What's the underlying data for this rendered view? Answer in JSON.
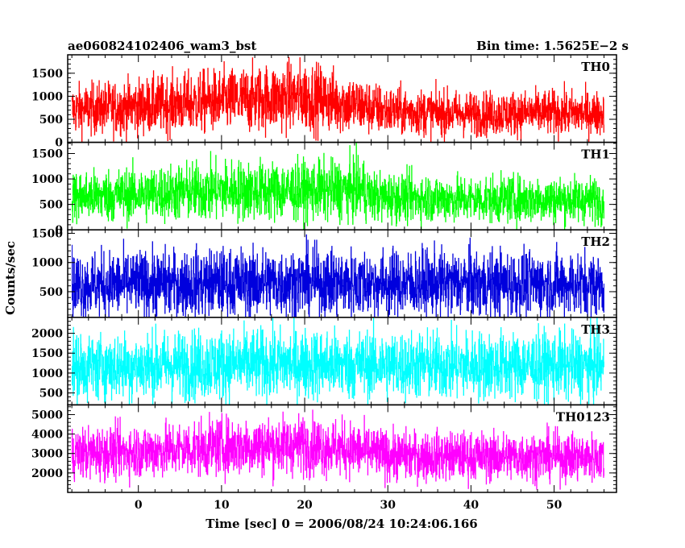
{
  "chart_data": {
    "type": "line",
    "title_left": "ae060824102406_wam3_bst",
    "title_right": "Bin time: 1.5625E−2 s",
    "xlabel": "Time [sec] 0 = 2006/08/24 10:24:06.166",
    "ylabel": "Counts/sec",
    "xlim": [
      -8.5,
      57.5
    ],
    "x_ticks": [
      0,
      10,
      20,
      30,
      40,
      50
    ],
    "x_start": -8,
    "x_end": 56,
    "bin_time": 0.015625,
    "grid": false,
    "panels": [
      {
        "name": "TH0",
        "color": "#ff0000",
        "ylim": [
          0,
          1900
        ],
        "y_ticks": [
          0,
          500,
          1000,
          1500
        ],
        "trend": [
          [
            -8,
            700
          ],
          [
            0,
            780
          ],
          [
            10,
            900
          ],
          [
            20,
            1000
          ],
          [
            25,
            850
          ],
          [
            30,
            680
          ],
          [
            40,
            620
          ],
          [
            50,
            640
          ],
          [
            56,
            620
          ]
        ],
        "spread": 0.38
      },
      {
        "name": "TH1",
        "color": "#00ff00",
        "ylim": [
          0,
          1720
        ],
        "y_ticks": [
          0,
          500,
          1000,
          1500
        ],
        "trend": [
          [
            -8,
            650
          ],
          [
            0,
            700
          ],
          [
            10,
            780
          ],
          [
            20,
            760
          ],
          [
            27,
            800
          ],
          [
            28,
            650
          ],
          [
            40,
            600
          ],
          [
            50,
            600
          ],
          [
            56,
            590
          ]
        ],
        "spread": 0.38
      },
      {
        "name": "TH2",
        "color": "#0000dd",
        "ylim": [
          60,
          1560
        ],
        "y_ticks": [
          500,
          1000,
          1500
        ],
        "trend": [
          [
            -8,
            620
          ],
          [
            0,
            630
          ],
          [
            10,
            650
          ],
          [
            20,
            660
          ],
          [
            30,
            640
          ],
          [
            40,
            640
          ],
          [
            50,
            630
          ],
          [
            56,
            620
          ]
        ],
        "spread": 0.45
      },
      {
        "name": "TH3",
        "color": "#00ffff",
        "ylim": [
          200,
          2400
        ],
        "y_ticks": [
          500,
          1000,
          1500,
          2000
        ],
        "trend": [
          [
            -8,
            1150
          ],
          [
            0,
            1180
          ],
          [
            10,
            1220
          ],
          [
            20,
            1230
          ],
          [
            30,
            1200
          ],
          [
            40,
            1190
          ],
          [
            50,
            1180
          ],
          [
            56,
            1170
          ]
        ],
        "spread": 0.36
      },
      {
        "name": "TH0123",
        "color": "#ff00ff",
        "ylim": [
          1000,
          5500
        ],
        "y_ticks": [
          2000,
          3000,
          4000,
          5000
        ],
        "trend": [
          [
            -8,
            3000
          ],
          [
            0,
            3100
          ],
          [
            10,
            3350
          ],
          [
            20,
            3450
          ],
          [
            25,
            3250
          ],
          [
            30,
            2900
          ],
          [
            40,
            2850
          ],
          [
            50,
            2850
          ],
          [
            56,
            2800
          ]
        ],
        "spread": 0.22
      }
    ]
  }
}
